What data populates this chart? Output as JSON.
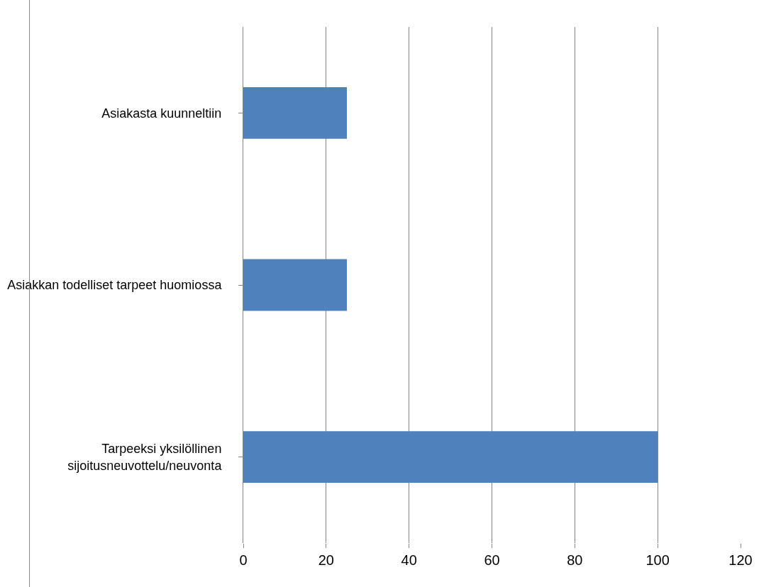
{
  "chart_data": {
    "type": "bar",
    "orientation": "horizontal",
    "categories": [
      "Asiakasta kuunneltiin",
      "Asiakkan todelliset tarpeet huomiossa",
      "Tarpeeksi yksilöllinen sijoitusneuvottelu/neuvonta"
    ],
    "values": [
      25,
      25,
      100
    ],
    "color": "#4f81bd",
    "xlim": [
      0,
      120
    ],
    "xticks": [
      0,
      20,
      40,
      60,
      80,
      100,
      120
    ],
    "grid": "x"
  }
}
